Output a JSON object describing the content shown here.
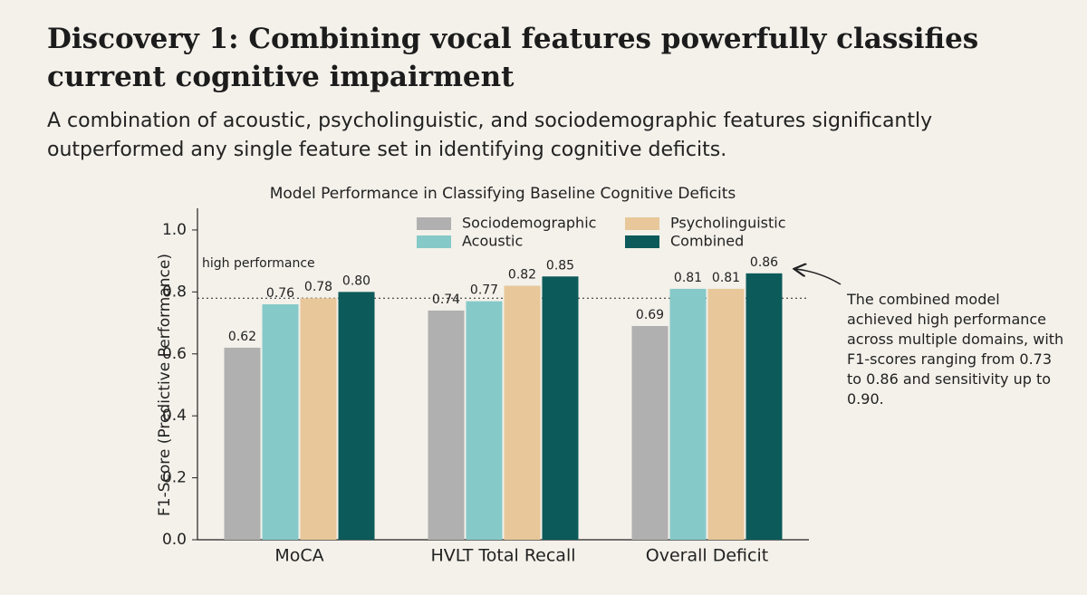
{
  "title": "Discovery 1: Combining vocal features powerfully classifies current cognitive impairment",
  "subtitle": "A combination of acoustic, psycholinguistic, and sociodemographic features significantly outperformed any single feature set in identifying cognitive deficits.",
  "chart_data": {
    "type": "bar",
    "title": "Model Performance in Classifying Baseline Cognitive Deficits",
    "y_label": "F1-Score (Predictive Performance)",
    "categories": [
      "MoCA",
      "HVLT Total Recall",
      "Overall Deficit"
    ],
    "series": [
      {
        "name": "Sociodemographic",
        "color": "#b0b0b0",
        "values": [
          0.62,
          0.74,
          0.69
        ],
        "value_labels": [
          "0.62",
          "0.74",
          "0.69"
        ]
      },
      {
        "name": "Acoustic",
        "color": "#86c9c9",
        "values": [
          0.76,
          0.77,
          0.81
        ],
        "value_labels": [
          "0.76",
          "0.77",
          "0.81"
        ]
      },
      {
        "name": "Psycholinguistic",
        "color": "#e8c79a",
        "values": [
          0.78,
          0.82,
          0.81
        ],
        "value_labels": [
          "0.78",
          "0.82",
          "0.81"
        ]
      },
      {
        "name": "Combined",
        "color": "#0d5a5a",
        "values": [
          0.8,
          0.85,
          0.86
        ],
        "value_labels": [
          "0.80",
          "0.85",
          "0.86"
        ]
      }
    ],
    "ylim": [
      0,
      1.07
    ],
    "yticks": [
      {
        "value": 0,
        "label": "0.0"
      },
      0.2,
      0.4,
      0.6,
      0.8,
      {
        "value": 1,
        "label": "1.0"
      }
    ],
    "reference_line": {
      "value": 0.78,
      "label": "high performance"
    },
    "annotation": "The combined model achieved high performance across multiple domains, with F1-scores ranging from 0.73 to 0.86 and sensitivity up to 0.90."
  }
}
